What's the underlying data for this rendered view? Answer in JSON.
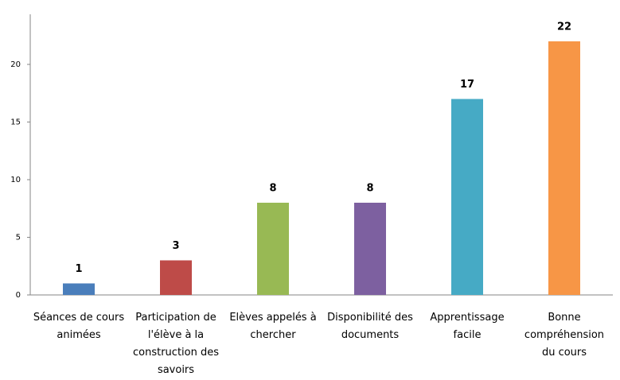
{
  "chart_data": {
    "type": "bar",
    "categories": [
      "Séances de cours animées",
      "Participation de l'élève à la construction des savoirs",
      "Elèves appelés à chercher",
      "Disponibilité des documents",
      "Apprentissage facile",
      "Bonne compréhension du cours"
    ],
    "values": [
      1,
      3,
      8,
      8,
      17,
      22
    ],
    "colors": [
      "#4a7ebb",
      "#be4b48",
      "#98b954",
      "#7d60a0",
      "#46aac5",
      "#f79646"
    ],
    "ylim": [
      0,
      24
    ],
    "yticks": [
      0,
      5,
      10,
      15,
      20
    ],
    "grid": false
  }
}
